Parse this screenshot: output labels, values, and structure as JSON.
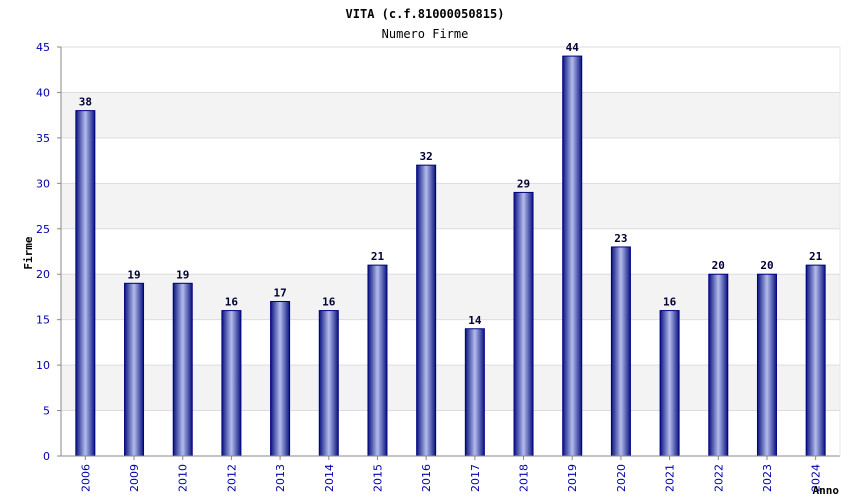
{
  "chart_data": {
    "type": "bar",
    "title": "VITA (c.f.81000050815)",
    "subtitle": "Numero Firme",
    "xlabel": "Anno",
    "ylabel": "Firme",
    "ylim": [
      0,
      45
    ],
    "yticks": [
      0,
      5,
      10,
      15,
      20,
      25,
      30,
      35,
      40,
      45
    ],
    "grid": true,
    "categories": [
      "2006",
      "2009",
      "2010",
      "2012",
      "2013",
      "2014",
      "2015",
      "2016",
      "2017",
      "2018",
      "2019",
      "2020",
      "2021",
      "2022",
      "2023",
      "2024"
    ],
    "values": [
      38,
      19,
      19,
      16,
      17,
      16,
      21,
      32,
      14,
      29,
      44,
      23,
      16,
      20,
      20,
      21
    ],
    "colors": {
      "bar_edge": "#000080",
      "bar_center": "#a8b0e8",
      "bar_dark": "#1a2490",
      "band": "#f3f3f3",
      "grid": "#dddddd",
      "axis": "#888888",
      "tick_text": "#0000aa"
    }
  }
}
